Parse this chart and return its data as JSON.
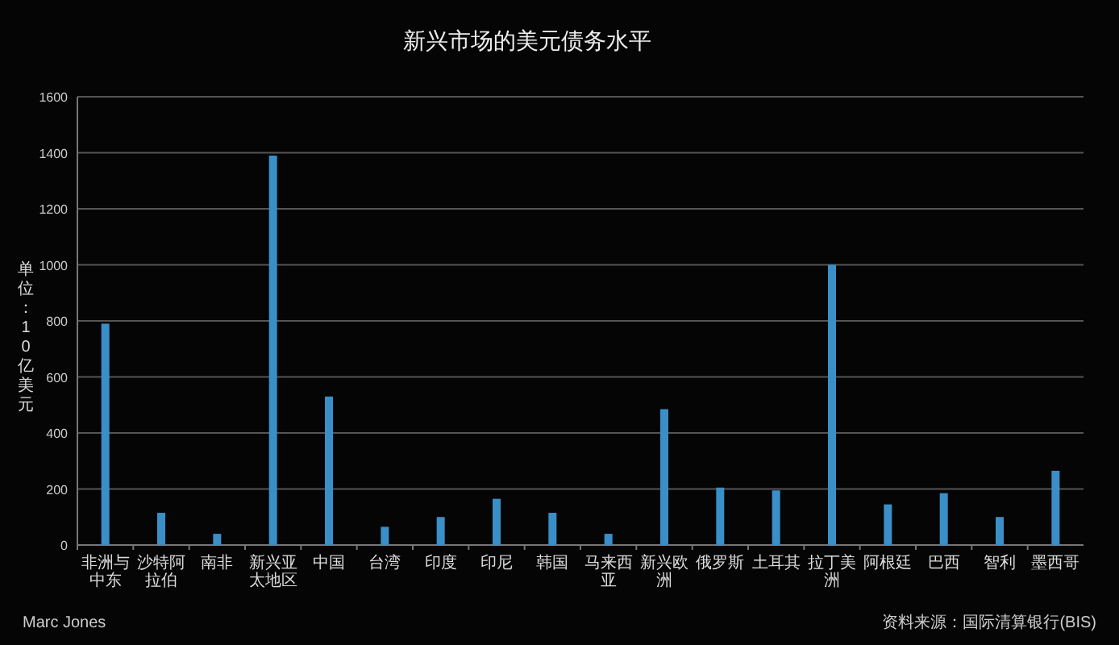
{
  "chart_data": {
    "type": "bar",
    "title": "新兴市场的美元债务水平",
    "ylabel": "单位：10亿美元",
    "categories": [
      "非洲与中东",
      "沙特阿拉伯",
      "南非",
      "新兴亚太地区",
      "中国",
      "台湾",
      "印度",
      "印尼",
      "韩国",
      "马来西亚",
      "新兴欧洲",
      "俄罗斯",
      "土耳其",
      "拉丁美洲",
      "阿根廷",
      "巴西",
      "智利",
      "墨西哥"
    ],
    "values": [
      790,
      115,
      40,
      1390,
      530,
      65,
      100,
      165,
      115,
      40,
      485,
      205,
      195,
      1000,
      145,
      185,
      100,
      265
    ],
    "color": "#3a8fc8",
    "ylim": [
      0,
      1600
    ],
    "yticks": [
      0,
      200,
      400,
      600,
      800,
      1000,
      1200,
      1400,
      1600
    ],
    "grid": "y",
    "annotations": [
      "Marc Jones",
      "资料来源：国际清算银行(BIS)"
    ]
  }
}
